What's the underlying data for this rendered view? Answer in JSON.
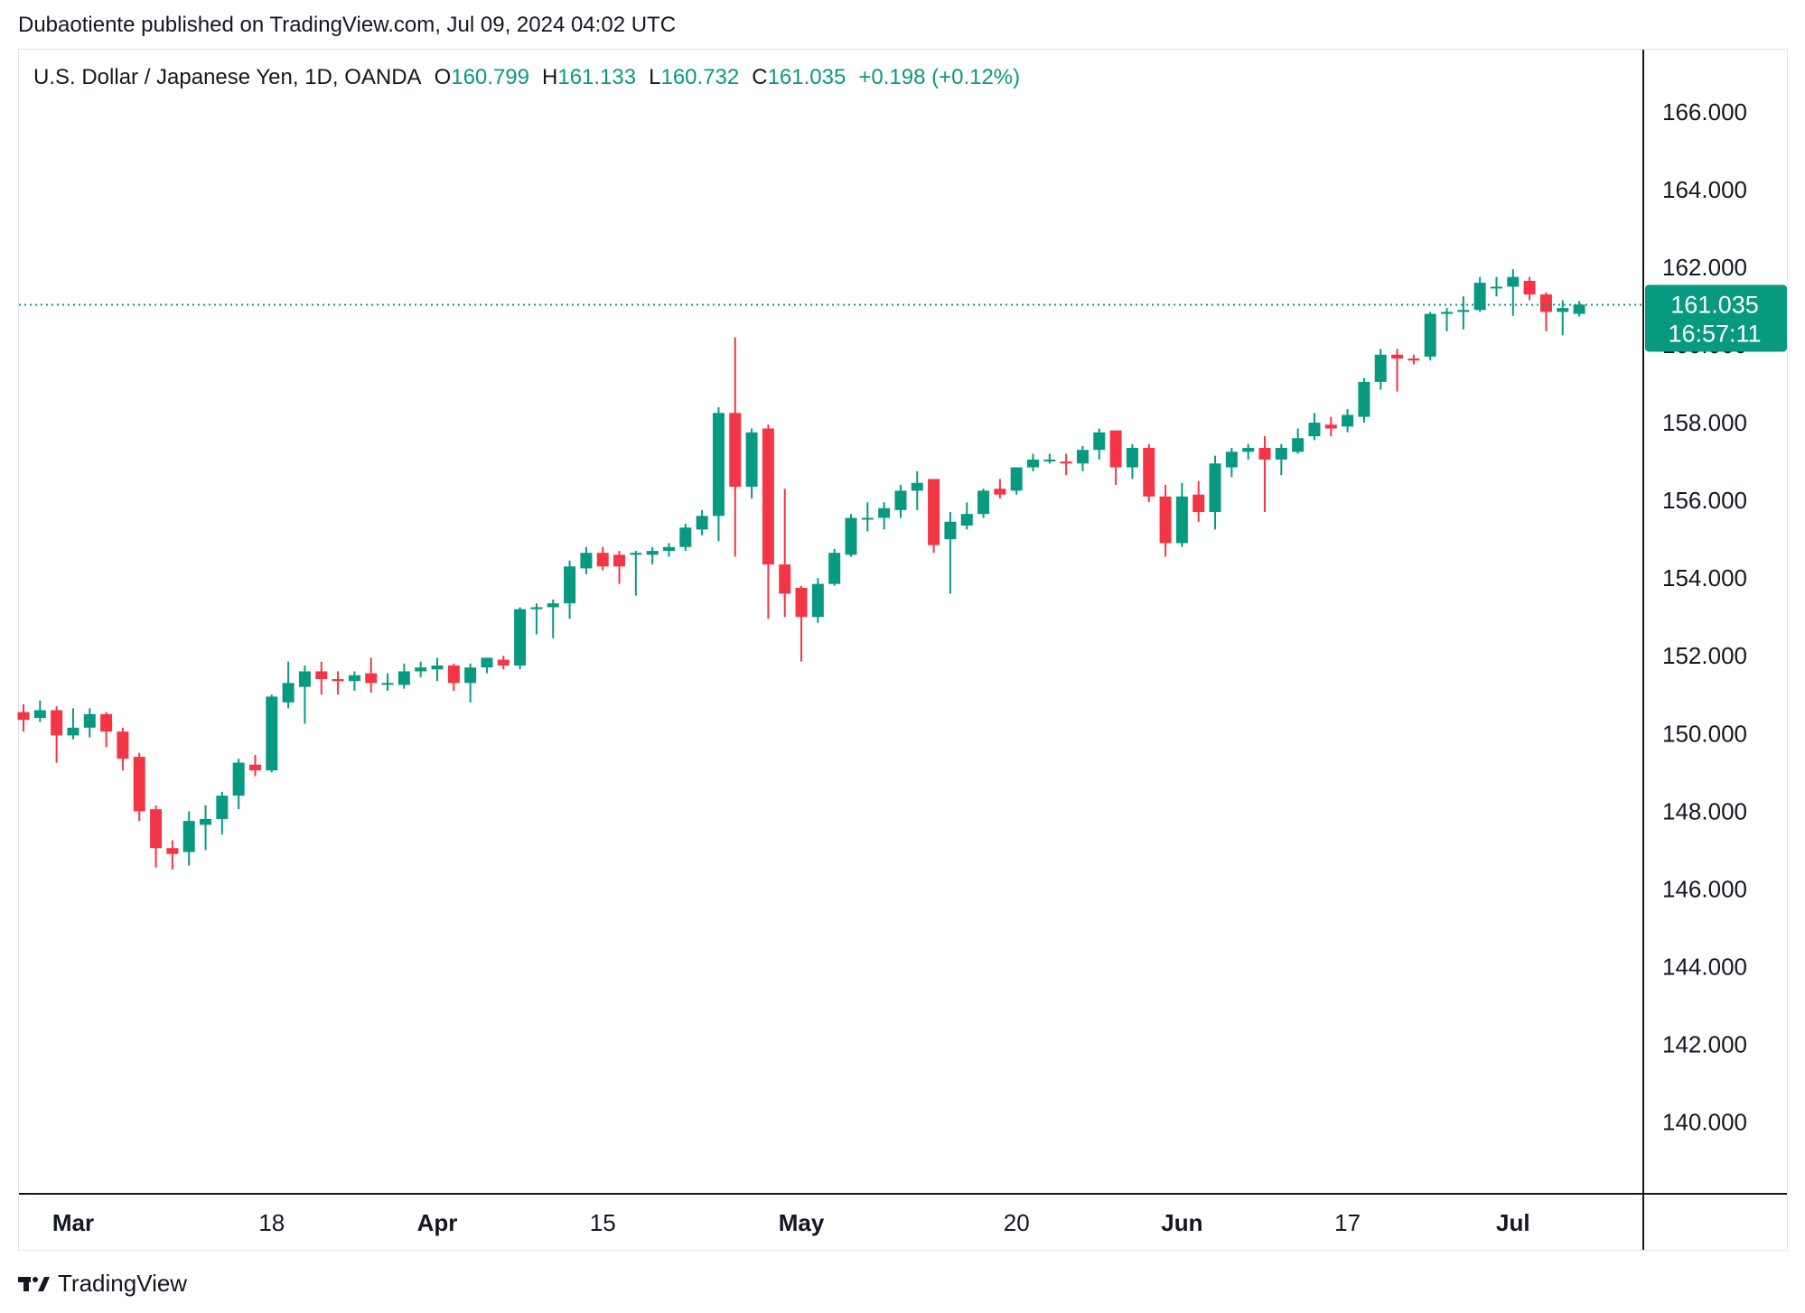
{
  "header": {
    "published": "Dubaotiente published on TradingView.com, Jul 09, 2024 04:02 UTC"
  },
  "legend": {
    "symbol": "U.S. Dollar / Japanese Yen, 1D, OANDA",
    "o_label": "O",
    "o_value": "160.799",
    "h_label": "H",
    "h_value": "161.133",
    "l_label": "L",
    "l_value": "160.732",
    "c_label": "C",
    "c_value": "161.035",
    "change": "+0.198 (+0.12%)"
  },
  "price_badge": {
    "price": "161.035",
    "countdown": "16:57:11"
  },
  "footer": {
    "brand": "TradingView"
  },
  "colors": {
    "up": "#089981",
    "down": "#f23645",
    "axis_text": "#131722",
    "badge": "#089981"
  },
  "chart_data": {
    "type": "candlestick",
    "title": "U.S. Dollar / Japanese Yen, 1D, OANDA",
    "ylim": [
      138.2,
      167.6
    ],
    "y_ticks": [
      "140.000",
      "142.000",
      "144.000",
      "146.000",
      "148.000",
      "150.000",
      "152.000",
      "154.000",
      "156.000",
      "158.000",
      "160.000",
      "162.000",
      "164.000",
      "166.000"
    ],
    "x_labels": [
      {
        "label": "Mar",
        "index": 3,
        "bold": true
      },
      {
        "label": "18",
        "index": 15,
        "bold": false
      },
      {
        "label": "Apr",
        "index": 25,
        "bold": true
      },
      {
        "label": "15",
        "index": 35,
        "bold": false
      },
      {
        "label": "May",
        "index": 47,
        "bold": true
      },
      {
        "label": "20",
        "index": 60,
        "bold": false
      },
      {
        "label": "Jun",
        "index": 70,
        "bold": true
      },
      {
        "label": "17",
        "index": 80,
        "bold": false
      },
      {
        "label": "Jul",
        "index": 90,
        "bold": true
      }
    ],
    "last_price": 161.035,
    "candles": [
      [
        150.55,
        150.75,
        150.05,
        150.35
      ],
      [
        150.4,
        150.85,
        150.3,
        150.6
      ],
      [
        150.6,
        150.7,
        149.25,
        149.95
      ],
      [
        149.95,
        150.65,
        149.85,
        150.15
      ],
      [
        150.15,
        150.65,
        149.9,
        150.5
      ],
      [
        150.5,
        150.55,
        149.65,
        150.05
      ],
      [
        150.05,
        150.15,
        149.05,
        149.35
      ],
      [
        149.4,
        149.5,
        147.75,
        148.0
      ],
      [
        148.05,
        148.15,
        146.55,
        147.05
      ],
      [
        147.05,
        147.25,
        146.5,
        146.9
      ],
      [
        146.95,
        148.0,
        146.6,
        147.75
      ],
      [
        147.65,
        148.15,
        147.0,
        147.8
      ],
      [
        147.8,
        148.5,
        147.4,
        148.4
      ],
      [
        148.4,
        149.35,
        148.05,
        149.25
      ],
      [
        149.2,
        149.45,
        148.9,
        149.05
      ],
      [
        149.05,
        151.0,
        149.0,
        150.95
      ],
      [
        150.8,
        151.85,
        150.65,
        151.3
      ],
      [
        151.2,
        151.75,
        150.25,
        151.6
      ],
      [
        151.6,
        151.85,
        151.0,
        151.4
      ],
      [
        151.4,
        151.6,
        151.0,
        151.35
      ],
      [
        151.35,
        151.6,
        151.1,
        151.5
      ],
      [
        151.55,
        151.95,
        151.05,
        151.3
      ],
      [
        151.3,
        151.55,
        151.1,
        151.3
      ],
      [
        151.25,
        151.8,
        151.15,
        151.6
      ],
      [
        151.6,
        151.85,
        151.45,
        151.7
      ],
      [
        151.65,
        151.95,
        151.35,
        151.75
      ],
      [
        151.75,
        151.8,
        151.1,
        151.3
      ],
      [
        151.3,
        151.8,
        150.8,
        151.7
      ],
      [
        151.7,
        151.95,
        151.55,
        151.95
      ],
      [
        151.9,
        152.0,
        151.65,
        151.75
      ],
      [
        151.75,
        153.25,
        151.65,
        153.2
      ],
      [
        153.2,
        153.35,
        152.55,
        153.25
      ],
      [
        153.25,
        153.45,
        152.45,
        153.35
      ],
      [
        153.35,
        154.45,
        152.95,
        154.3
      ],
      [
        154.25,
        154.8,
        154.1,
        154.65
      ],
      [
        154.65,
        154.8,
        154.2,
        154.3
      ],
      [
        154.6,
        154.7,
        153.85,
        154.3
      ],
      [
        154.6,
        154.7,
        153.55,
        154.65
      ],
      [
        154.6,
        154.8,
        154.35,
        154.7
      ],
      [
        154.7,
        154.9,
        154.55,
        154.8
      ],
      [
        154.8,
        155.4,
        154.7,
        155.3
      ],
      [
        155.25,
        155.75,
        155.1,
        155.6
      ],
      [
        155.6,
        158.4,
        154.95,
        158.25
      ],
      [
        158.25,
        160.2,
        154.55,
        156.35
      ],
      [
        156.35,
        157.85,
        156.05,
        157.75
      ],
      [
        157.85,
        157.95,
        152.95,
        154.35
      ],
      [
        154.35,
        156.3,
        153.0,
        153.6
      ],
      [
        153.75,
        153.8,
        151.85,
        153.0
      ],
      [
        153.0,
        154.0,
        152.85,
        153.85
      ],
      [
        153.85,
        154.75,
        153.8,
        154.65
      ],
      [
        154.6,
        155.65,
        154.55,
        155.55
      ],
      [
        155.55,
        155.95,
        155.2,
        155.55
      ],
      [
        155.55,
        155.95,
        155.25,
        155.8
      ],
      [
        155.75,
        156.4,
        155.55,
        156.25
      ],
      [
        156.25,
        156.75,
        155.75,
        156.45
      ],
      [
        156.55,
        156.55,
        154.65,
        154.85
      ],
      [
        155.0,
        155.7,
        153.6,
        155.45
      ],
      [
        155.35,
        155.95,
        155.25,
        155.65
      ],
      [
        155.65,
        156.3,
        155.55,
        156.25
      ],
      [
        156.3,
        156.55,
        156.05,
        156.15
      ],
      [
        156.25,
        156.85,
        156.15,
        156.85
      ],
      [
        156.85,
        157.2,
        156.75,
        157.05
      ],
      [
        157.05,
        157.2,
        156.95,
        157.05
      ],
      [
        157.0,
        157.2,
        156.65,
        156.95
      ],
      [
        156.95,
        157.4,
        156.75,
        157.3
      ],
      [
        157.3,
        157.85,
        157.05,
        157.75
      ],
      [
        157.8,
        157.8,
        156.4,
        156.85
      ],
      [
        156.85,
        157.45,
        156.55,
        157.35
      ],
      [
        157.35,
        157.45,
        155.95,
        156.1
      ],
      [
        156.1,
        156.4,
        154.55,
        154.9
      ],
      [
        154.9,
        156.45,
        154.8,
        156.1
      ],
      [
        156.15,
        156.5,
        155.45,
        155.7
      ],
      [
        155.7,
        157.15,
        155.25,
        156.95
      ],
      [
        156.85,
        157.35,
        156.6,
        157.25
      ],
      [
        157.25,
        157.45,
        157.05,
        157.35
      ],
      [
        157.35,
        157.65,
        155.7,
        157.05
      ],
      [
        157.05,
        157.45,
        156.65,
        157.35
      ],
      [
        157.25,
        157.85,
        157.2,
        157.6
      ],
      [
        157.65,
        158.25,
        157.55,
        158.0
      ],
      [
        157.95,
        158.15,
        157.65,
        157.85
      ],
      [
        157.9,
        158.35,
        157.75,
        158.2
      ],
      [
        158.15,
        159.15,
        158.0,
        159.05
      ],
      [
        159.05,
        159.9,
        158.85,
        159.75
      ],
      [
        159.75,
        159.9,
        158.8,
        159.65
      ],
      [
        159.65,
        159.75,
        159.5,
        159.6
      ],
      [
        159.7,
        160.85,
        159.6,
        160.8
      ],
      [
        160.8,
        160.95,
        160.35,
        160.85
      ],
      [
        160.85,
        161.25,
        160.4,
        160.9
      ],
      [
        160.9,
        161.75,
        160.85,
        161.6
      ],
      [
        161.5,
        161.75,
        161.25,
        161.5
      ],
      [
        161.5,
        161.95,
        160.75,
        161.75
      ],
      [
        161.65,
        161.75,
        161.15,
        161.3
      ],
      [
        161.3,
        161.35,
        160.35,
        160.85
      ],
      [
        160.85,
        161.15,
        160.25,
        160.95
      ],
      [
        160.8,
        161.13,
        160.73,
        161.04
      ]
    ]
  }
}
